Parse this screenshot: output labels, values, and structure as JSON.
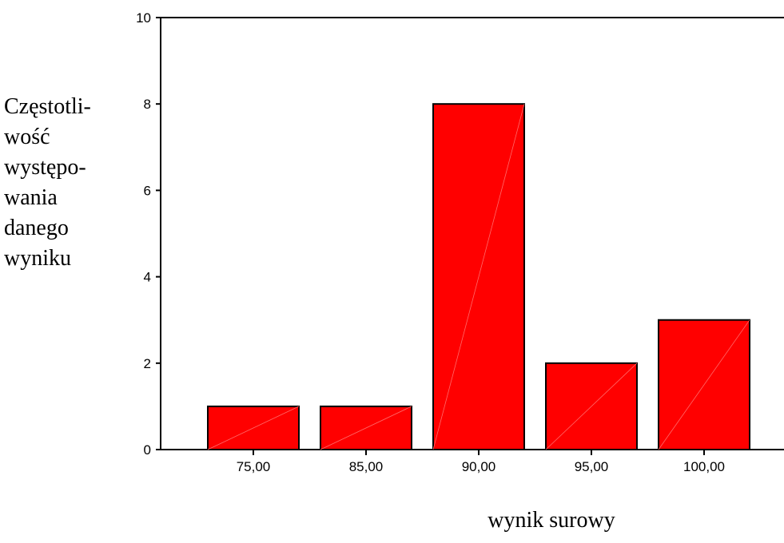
{
  "chart_data": {
    "type": "bar",
    "categories": [
      "75,00",
      "85,00",
      "90,00",
      "95,00",
      "100,00"
    ],
    "values": [
      1,
      1,
      8,
      2,
      3
    ],
    "ylim": [
      0,
      10
    ],
    "yticks": [
      "0",
      "2",
      "4",
      "6",
      "8",
      "10"
    ],
    "xlabel": "wynik surowy",
    "ylabel_lines": [
      "Częstotli-",
      "wość",
      "występo-",
      "wania",
      "danego",
      "wyniku"
    ],
    "ylabel": "Częstotliwość występowania danego wyniku",
    "grid": false,
    "colors": {
      "bar_fill": "#ff0000",
      "bar_stroke": "#000000"
    }
  }
}
